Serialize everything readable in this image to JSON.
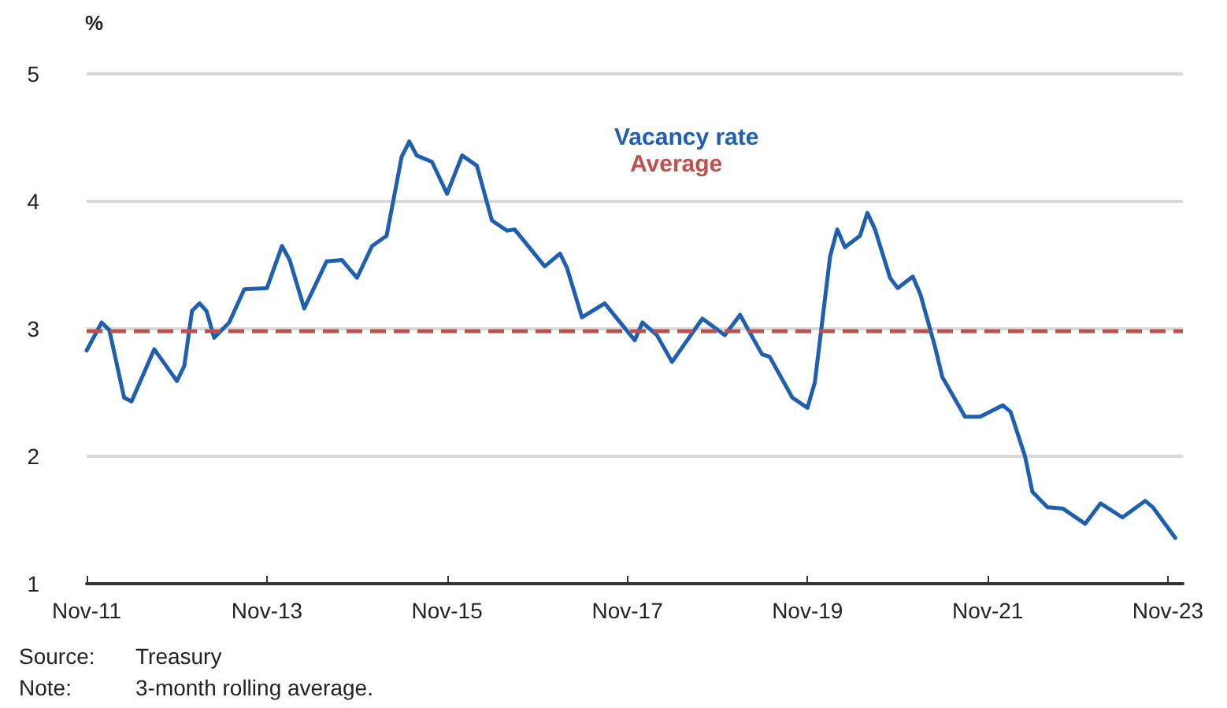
{
  "chart_data": {
    "type": "line",
    "ylabel": "%",
    "x": [
      "2011-11",
      "2012-01",
      "2012-02",
      "2012-04",
      "2012-05",
      "2012-08",
      "2012-11",
      "2012-12",
      "2013-01",
      "2013-02",
      "2013-03",
      "2013-04",
      "2013-06",
      "2013-08",
      "2013-11",
      "2014-01",
      "2014-02",
      "2014-04",
      "2014-07",
      "2014-09",
      "2014-11",
      "2015-01",
      "2015-03",
      "2015-05",
      "2015-06",
      "2015-07",
      "2015-09",
      "2015-11",
      "2016-01",
      "2016-03",
      "2016-05",
      "2016-07",
      "2016-08",
      "2016-12",
      "2017-02",
      "2017-03",
      "2017-05",
      "2017-08",
      "2017-12",
      "2018-01",
      "2018-03",
      "2018-05",
      "2018-09",
      "2018-12",
      "2019-02",
      "2019-03",
      "2019-05",
      "2019-06",
      "2019-09",
      "2019-11",
      "2019-12",
      "2020-02",
      "2020-03",
      "2020-04",
      "2020-06",
      "2020-07",
      "2020-08",
      "2020-10",
      "2020-11",
      "2021-01",
      "2021-02",
      "2021-04",
      "2021-05",
      "2021-08",
      "2021-10",
      "2022-01",
      "2022-02",
      "2022-04",
      "2022-05",
      "2022-07",
      "2022-09",
      "2022-12",
      "2023-02",
      "2023-05",
      "2023-08",
      "2023-09",
      "2023-12"
    ],
    "series": [
      {
        "name": "Vacancy rate",
        "color": "#1f5fb0",
        "values": [
          2.83,
          3.05,
          2.99,
          2.46,
          2.43,
          2.84,
          2.59,
          2.71,
          3.14,
          3.2,
          3.14,
          2.93,
          3.05,
          3.31,
          3.32,
          3.65,
          3.54,
          3.16,
          3.53,
          3.54,
          3.4,
          3.65,
          3.73,
          4.35,
          4.47,
          4.36,
          4.31,
          4.06,
          4.36,
          4.28,
          3.85,
          3.77,
          3.78,
          3.49,
          3.59,
          3.48,
          3.09,
          3.2,
          2.91,
          3.05,
          2.95,
          2.74,
          3.08,
          2.95,
          3.11,
          3.01,
          2.8,
          2.78,
          2.46,
          2.38,
          2.58,
          3.57,
          3.78,
          3.64,
          3.73,
          3.91,
          3.78,
          3.4,
          3.32,
          3.41,
          3.27,
          2.86,
          2.62,
          2.31,
          2.31,
          2.4,
          2.35,
          2.0,
          1.72,
          1.6,
          1.59,
          1.47,
          1.63,
          1.52,
          1.65,
          1.6,
          1.36
        ]
      }
    ],
    "ref_lines": [
      {
        "axis": "y",
        "value": 2.98,
        "label": "Average",
        "color": "#c0504d",
        "line_style": "dashed"
      }
    ],
    "xlim": [
      "2011-11",
      "2024-01"
    ],
    "xticks": [
      {
        "value": "2011-11",
        "label": "Nov-11"
      },
      {
        "value": "2013-11",
        "label": "Nov-13"
      },
      {
        "value": "2015-11",
        "label": "Nov-15"
      },
      {
        "value": "2017-11",
        "label": "Nov-17"
      },
      {
        "value": "2019-11",
        "label": "Nov-19"
      },
      {
        "value": "2021-11",
        "label": "Nov-21"
      },
      {
        "value": "2023-11",
        "label": "Nov-23"
      }
    ],
    "ylim": [
      1,
      5
    ],
    "yticks": [
      1,
      2,
      3,
      4,
      5
    ],
    "grid": "y",
    "legend": "top",
    "marker": "none",
    "line_style": "solid",
    "annotations": [
      "Source: Treasury",
      "Note: 3-month rolling average."
    ]
  }
}
